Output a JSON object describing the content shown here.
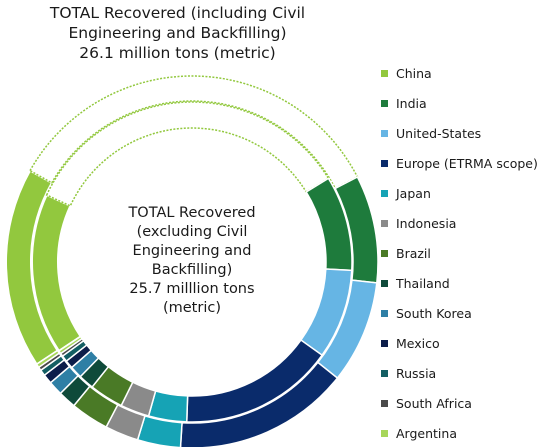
{
  "chart_data": [
    {
      "type": "pie",
      "ring": "outer",
      "title_lines": [
        "TOTAL Recovered (including Civil",
        "Engineering and Backfilling)",
        "26.1 million tons (metric)"
      ],
      "categories": [
        "China",
        "India",
        "United-States",
        "Europe (ETRMA scope)",
        "Japan",
        "Indonesia",
        "Brazil",
        "Thailand",
        "South Korea",
        "Mexico",
        "Russia",
        "South Africa",
        "Argentina"
      ],
      "values": [
        49.8,
        9.0,
        8.6,
        14.7,
        3.6,
        2.8,
        3.2,
        1.5,
        1.2,
        0.8,
        0.5,
        0.3,
        0.3
      ],
      "highlight": {
        "category": "China",
        "share_outlined_unfilled": 33.0
      }
    },
    {
      "type": "pie",
      "ring": "inner",
      "title_lines": [
        "TOTAL Recovered",
        "(excluding Civil",
        "Engineering and",
        "Backfilling)",
        "25.7 milllion tons",
        "(metric)"
      ],
      "categories": [
        "China",
        "India",
        "United-States",
        "Europe (ETRMA scope)",
        "Japan",
        "Indonesia",
        "Brazil",
        "Thailand",
        "South Korea",
        "Mexico",
        "Russia",
        "South Africa",
        "Argentina"
      ],
      "values": [
        48.6,
        9.2,
        8.7,
        15.0,
        3.7,
        2.8,
        3.3,
        1.5,
        1.2,
        0.8,
        0.6,
        0.3,
        0.3
      ],
      "highlight": {
        "category": "China",
        "share_outlined_unfilled": 33.0
      }
    }
  ],
  "legend": {
    "placement": "right",
    "items": [
      {
        "label": "China",
        "color": "#92c83e"
      },
      {
        "label": "India",
        "color": "#1e7b3c"
      },
      {
        "label": "United-States",
        "color": "#66b5e4"
      },
      {
        "label": "Europe (ETRMA scope)",
        "color": "#0a2b6b"
      },
      {
        "label": "Japan",
        "color": "#16a3b5"
      },
      {
        "label": "Indonesia",
        "color": "#8a8a8a"
      },
      {
        "label": "Brazil",
        "color": "#4a7a26"
      },
      {
        "label": "Thailand",
        "color": "#0f4a3a"
      },
      {
        "label": "South Korea",
        "color": "#2e7fa5"
      },
      {
        "label": "Mexico",
        "color": "#0c1d4a"
      },
      {
        "label": "Russia",
        "color": "#135e63"
      },
      {
        "label": "South Africa",
        "color": "#4a4a4a"
      },
      {
        "label": "Argentina",
        "color": "#a7d65a"
      }
    ]
  }
}
